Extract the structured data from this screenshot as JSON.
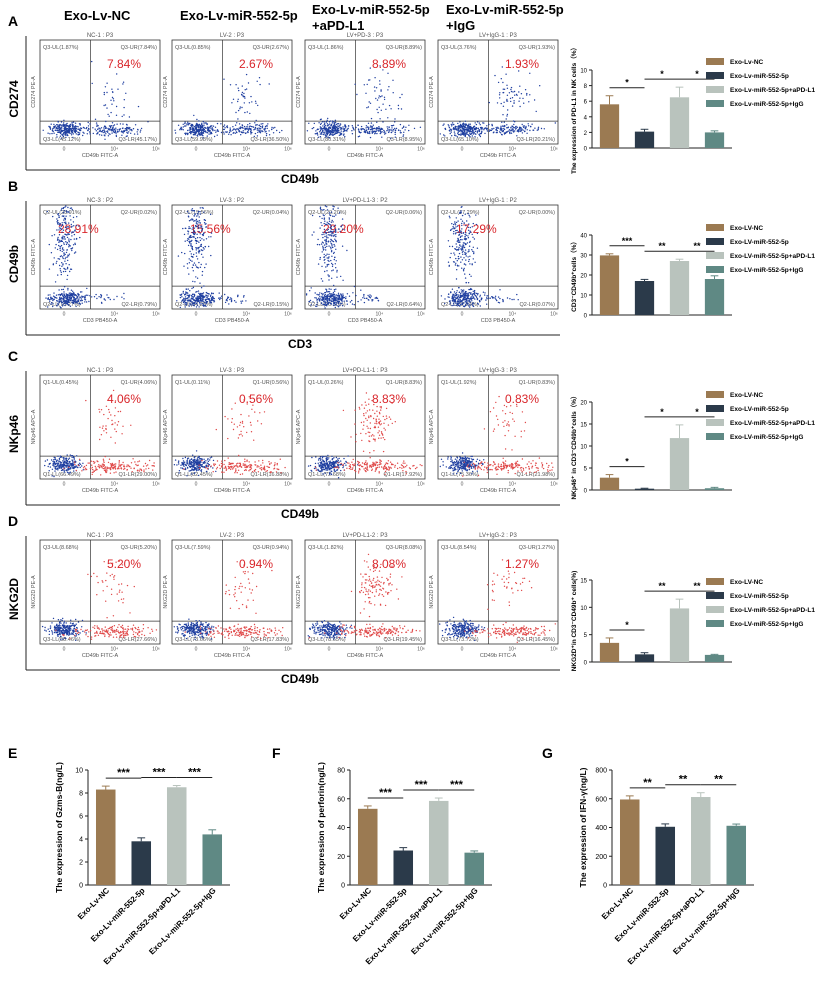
{
  "colors": {
    "nc": "#9b7a52",
    "mir": "#2b3a4a",
    "pdl1": "#b9c3bd",
    "igg": "#5f8984",
    "percent_red": "#d9262b",
    "blue_dots": "#1f3fa0",
    "red_dots": "#e04a4a"
  },
  "group_headers": {
    "g1": "Exo-Lv-NC",
    "g2": "Exo-Lv-miR-552-5p",
    "g3_line1": "Exo-Lv-miR-552-5p",
    "g3_line2": "+aPD-L1",
    "g4_line1": "Exo-Lv-miR-552-5p",
    "g4_line2": "+IgG"
  },
  "rows": [
    {
      "panel": "A",
      "ylabel": "CD274",
      "xlabel": "CD49b",
      "red_dots": false,
      "plots": [
        {
          "title": "NC-1 : P3",
          "ul": "Q3-UL(1.87%)",
          "ur": "Q3-UR(7.84%)",
          "ll": "Q3-LL(45.12%)",
          "lr": "Q3-LR(45.17%)",
          "pct": "7.84%",
          "yaxis": "CD274 PE-A",
          "xaxis": "CD49b FITC-A"
        },
        {
          "title": "LV-2 : P3",
          "ul": "Q3-UL(0.85%)",
          "ur": "Q3-UR(2.67%)",
          "ll": "Q3-LL(59.98%)",
          "lr": "Q3-LR(36.50%)",
          "pct": "2.67%",
          "yaxis": "CD274 PE-A",
          "xaxis": "CD49b FITC-A"
        },
        {
          "title": "LV+PD-3 : P3",
          "ul": "Q3-UL(1.86%)",
          "ur": "Q3-UR(8.89%)",
          "ll": "Q3-LL(80.31%)",
          "lr": "Q3-LR(8.95%)",
          "pct": "8.89%",
          "yaxis": "CD274 PE-A",
          "xaxis": "CD49b FITC-A"
        },
        {
          "title": "LV+IgG-1 : P3",
          "ul": "Q3-UL(3.76%)",
          "ur": "Q3-UR(1.93%)",
          "ll": "Q3-LL(65.10%)",
          "lr": "Q3-LR(20.21%)",
          "pct": "1.93%",
          "yaxis": "CD274 PE-A",
          "xaxis": "CD49b FITC-A"
        }
      ]
    },
    {
      "panel": "B",
      "ylabel": "CD49b",
      "xlabel": "CD3",
      "red_dots": false,
      "plots": [
        {
          "title": "NC-3 : P2",
          "ul": "Q2-UL(28.91%)",
          "ur": "Q2-UR(0.02%)",
          "ll": "Q2-LL(70.27%)",
          "lr": "Q2-LR(0.79%)",
          "pct": "28.91%",
          "yaxis": "CD49b FITC-A",
          "xaxis": "CD3 PB450-A"
        },
        {
          "title": "LV-3 : P2",
          "ul": "Q2-UL(15.56%)",
          "ur": "Q2-UR(0.04%)",
          "ll": "Q2-LL(84.25%)",
          "lr": "Q2-LR(0.15%)",
          "pct": "15.56%",
          "yaxis": "CD49b FITC-A",
          "xaxis": "CD3 PB450-A"
        },
        {
          "title": "LV+PD-L1-3 : P2",
          "ul": "Q2-UL(29.20%)",
          "ur": "Q2-UR(0.06%)",
          "ll": "Q2-LL(70.10%)",
          "lr": "Q2-LR(0.64%)",
          "pct": "29.20%",
          "yaxis": "CD49b FITC-A",
          "xaxis": "CD3 PB450-A"
        },
        {
          "title": "LV+IgG-1 : P2",
          "ul": "Q2-UL(17.29%)",
          "ur": "Q2-UR(0.00%)",
          "ll": "Q2-LL(82.64%)",
          "lr": "Q2-LR(0.07%)",
          "pct": "17.29%",
          "yaxis": "CD49b FITC-A",
          "xaxis": "CD3 PB450-A"
        }
      ]
    },
    {
      "panel": "C",
      "ylabel": "NKp46",
      "xlabel": "CD49b",
      "red_dots": true,
      "plots": [
        {
          "title": "NC-1 : P3",
          "ul": "Q1-UL(0.45%)",
          "ur": "Q1-UR(4.06%)",
          "ll": "Q1-LL(66.49%)",
          "lr": "Q1-LR(29.00%)",
          "pct": "4.06%",
          "yaxis": "NKp46 APC-A",
          "xaxis": "CD49b FITC-A"
        },
        {
          "title": "LV-3 : P3",
          "ul": "Q1-UL(0.11%)",
          "ur": "Q1-UR(0.56%)",
          "ll": "Q1-LL(82.45%)",
          "lr": "Q1-LR(16.88%)",
          "pct": "0.56%",
          "yaxis": "NKp46 APC-A",
          "xaxis": "CD49b FITC-A"
        },
        {
          "title": "LV+PD-L1-1 : P3",
          "ul": "Q1-UL(0.26%)",
          "ur": "Q1-UR(8.83%)",
          "ll": "Q1-LL(72.68%)",
          "lr": "Q1-LR(17.92%)",
          "pct": "8.83%",
          "yaxis": "NKp46 APC-A",
          "xaxis": "CD49b FITC-A"
        },
        {
          "title": "LV+IgG-3 : P3",
          "ul": "Q1-UL(1.92%)",
          "ur": "Q1-UR(0.83%)",
          "ll": "Q1-LL(75.36%)",
          "lr": "Q1-LR(21.98%)",
          "pct": "0.83%",
          "yaxis": "NKp46 APC-A",
          "xaxis": "CD49b FITC-A"
        }
      ]
    },
    {
      "panel": "D",
      "ylabel": "NKG2D",
      "xlabel": "CD49b",
      "red_dots": true,
      "plots": [
        {
          "title": "NC-1 : P3",
          "ul": "Q3-UL(8.68%)",
          "ur": "Q3-UR(5.20%)",
          "ll": "Q3-LL(58.46%)",
          "lr": "Q3-LR(27.66%)",
          "pct": "5.20%",
          "yaxis": "NKG2D PE-A",
          "xaxis": "CD49b FITC-A"
        },
        {
          "title": "LV-2 : P3",
          "ul": "Q3-UL(7.59%)",
          "ur": "Q3-UR(0.94%)",
          "ll": "Q3-LL(73.66%)",
          "lr": "Q3-LR(17.83%)",
          "pct": "0.94%",
          "yaxis": "NKG2D PE-A",
          "xaxis": "CD49b FITC-A"
        },
        {
          "title": "LV+PD-L1-2 : P3",
          "ul": "Q3-UL(1.82%)",
          "ur": "Q3-UR(8.08%)",
          "ll": "Q3-LL(78.65%)",
          "lr": "Q3-LR(19.45%)",
          "pct": "8.08%",
          "yaxis": "NKG2D PE-A",
          "xaxis": "CD49b FITC-A"
        },
        {
          "title": "LV+IgG-2 : P3",
          "ul": "Q3-UL(8.54%)",
          "ur": "Q3-UR(1.27%)",
          "ll": "Q3-LL(73.72%)",
          "lr": "Q3-LR(16.45%)",
          "pct": "1.27%",
          "yaxis": "NKG2D PE-A",
          "xaxis": "CD49b FITC-A"
        }
      ]
    }
  ],
  "flow_ticks": {
    "x": [
      "0",
      "10⁴",
      "10⁶"
    ],
    "y": [
      "0",
      "10⁴",
      "10⁶"
    ]
  },
  "chart_data": [
    {
      "panel": "A",
      "type": "bar",
      "ylabel": "The expression of PD-L1 in NK cells（%）",
      "ylim": [
        0,
        10
      ],
      "yticks": [
        "0",
        "2",
        "4",
        "6",
        "8",
        "10"
      ],
      "categories": [
        "Exo-Lv-NC",
        "Exo-Lv-miR-552-5p",
        "Exo-Lv-miR-552-5p+aPD-L1",
        "Exo-Lv-miR-552-5p+IgG"
      ],
      "values": [
        5.6,
        2.1,
        6.5,
        2.0
      ],
      "errors": [
        1.1,
        0.3,
        1.3,
        0.2
      ],
      "significance": [
        {
          "a": 0,
          "b": 1,
          "label": "*"
        },
        {
          "a": 1,
          "b": 2,
          "label": "*"
        },
        {
          "a": 2,
          "b": 3,
          "label": "*"
        }
      ],
      "legend": [
        "Exo-Lv-NC",
        "Exo-Lv-miR-552-5p",
        "Exo-Lv-miR-552-5p+aPD-L1",
        "Exo-Lv-miR-552-5p+IgG"
      ]
    },
    {
      "panel": "B",
      "type": "bar",
      "ylabel": "CD3⁻CD49b⁺cells（%）",
      "ylim": [
        0,
        40
      ],
      "yticks": [
        "0",
        "10",
        "20",
        "30",
        "40"
      ],
      "categories": [
        "Exo-LV-NC",
        "Exo-LV-miR-552-5p",
        "Exo-LV-miR-552-5p+aPD-L1",
        "Exo-LV-miR-552-5p+IgG"
      ],
      "values": [
        29.8,
        17.0,
        27.0,
        18.0
      ],
      "errors": [
        0.8,
        0.8,
        0.9,
        1.6
      ],
      "significance": [
        {
          "a": 0,
          "b": 1,
          "label": "***"
        },
        {
          "a": 1,
          "b": 2,
          "label": "**"
        },
        {
          "a": 2,
          "b": 3,
          "label": "**"
        }
      ],
      "legend": [
        "Exo-LV-NC",
        "Exo-LV-miR-552-5p",
        "Exo-LV-miR-552-5p+aPD-L1",
        "Exo-LV-miR-552-5p+IgG"
      ]
    },
    {
      "panel": "C",
      "type": "bar",
      "ylabel": "NKp46⁺ in CD3⁻CD49b⁺cells（%）",
      "ylim": [
        0,
        20
      ],
      "yticks": [
        "0",
        "5",
        "10",
        "15",
        "20"
      ],
      "categories": [
        "Exo-LV-NC",
        "Exo-LV-miR-552-5p",
        "Exo-LV-miR-552-5p+aPD-L1",
        "Exo-LV-miR-552-5p+IgG"
      ],
      "values": [
        2.8,
        0.3,
        11.8,
        0.4
      ],
      "errors": [
        0.7,
        0.1,
        3.0,
        0.2
      ],
      "significance": [
        {
          "a": 0,
          "b": 1,
          "label": "*"
        },
        {
          "a": 1,
          "b": 2,
          "label": "*"
        },
        {
          "a": 2,
          "b": 3,
          "label": "*"
        }
      ],
      "legend": [
        "Exo-LV-NC",
        "Exo-LV-miR-552-5p",
        "Exo-LV-miR-552-5p+aPD-L1",
        "Exo-LV-miR-552-5p+IgG"
      ]
    },
    {
      "panel": "D",
      "type": "bar",
      "ylabel": "NKG2D⁺in CD3⁻CD49b⁺ cells(%)",
      "ylim": [
        0,
        15
      ],
      "yticks": [
        "0",
        "5",
        "10",
        "15"
      ],
      "categories": [
        "Exo-LV-NC",
        "Exo-LV-miR-552-5p",
        "Exo-LV-miR-552-5p+aPD-L1",
        "Exo-LV-miR-552-5p+IgG"
      ],
      "values": [
        3.5,
        1.4,
        9.8,
        1.3
      ],
      "errors": [
        0.9,
        0.3,
        1.7,
        0.1
      ],
      "significance": [
        {
          "a": 0,
          "b": 1,
          "label": "*"
        },
        {
          "a": 1,
          "b": 2,
          "label": "**"
        },
        {
          "a": 2,
          "b": 3,
          "label": "**"
        }
      ],
      "legend": [
        "Exo-LV-NC",
        "Exo-LV-miR-552-5p",
        "Exo-LV-miR-552-5p+aPD-L1",
        "Exo-LV-miR-552-5p+IgG"
      ]
    },
    {
      "panel": "E",
      "type": "bar",
      "ylabel": "The expression of Gzms-B(ng/L)",
      "ylim": [
        0,
        10
      ],
      "yticks": [
        "0",
        "2",
        "4",
        "6",
        "8",
        "10"
      ],
      "categories": [
        "Exo-Lv-NC",
        "Exo-Lv-miR-552-5p",
        "Exo-Lv-miR-552-5p+aPD-L1",
        "Exo-Lv-miR-552-5p+IgG"
      ],
      "values": [
        8.3,
        3.8,
        8.5,
        4.4
      ],
      "errors": [
        0.3,
        0.3,
        0.15,
        0.4
      ],
      "significance": [
        {
          "a": 0,
          "b": 1,
          "label": "***"
        },
        {
          "a": 1,
          "b": 2,
          "label": "***"
        },
        {
          "a": 2,
          "b": 3,
          "label": "***"
        }
      ]
    },
    {
      "panel": "F",
      "type": "bar",
      "ylabel": "The expression of perforin(ng/L)",
      "ylim": [
        0,
        80
      ],
      "yticks": [
        "0",
        "20",
        "40",
        "60",
        "80"
      ],
      "categories": [
        "Exo-Lv-NC",
        "Exo-Lv-miR-552-5p",
        "Exo-Lv-miR-552-5p+aPD-L1",
        "Exo-Lv-miR-552-5p+IgG"
      ],
      "values": [
        53,
        24,
        58.5,
        22.5
      ],
      "errors": [
        2.0,
        2.0,
        2.0,
        1.2
      ],
      "significance": [
        {
          "a": 0,
          "b": 1,
          "label": "***"
        },
        {
          "a": 1,
          "b": 2,
          "label": "***"
        },
        {
          "a": 2,
          "b": 3,
          "label": "***"
        }
      ]
    },
    {
      "panel": "G",
      "type": "bar",
      "ylabel": "The expression of IFN-γ(ng/L)",
      "ylim": [
        0,
        800
      ],
      "yticks": [
        "0",
        "200",
        "400",
        "600",
        "800"
      ],
      "categories": [
        "Exo-Lv-NC",
        "Exo-Lv-miR-552-5p",
        "Exo-Lv-miR-552-5p+aPD-L1",
        "Exo-Lv-miR-552-5p+IgG"
      ],
      "values": [
        595,
        405,
        612,
        412
      ],
      "errors": [
        25,
        20,
        30,
        12
      ],
      "significance": [
        {
          "a": 0,
          "b": 1,
          "label": "**"
        },
        {
          "a": 1,
          "b": 2,
          "label": "**"
        },
        {
          "a": 2,
          "b": 3,
          "label": "**"
        }
      ]
    }
  ]
}
